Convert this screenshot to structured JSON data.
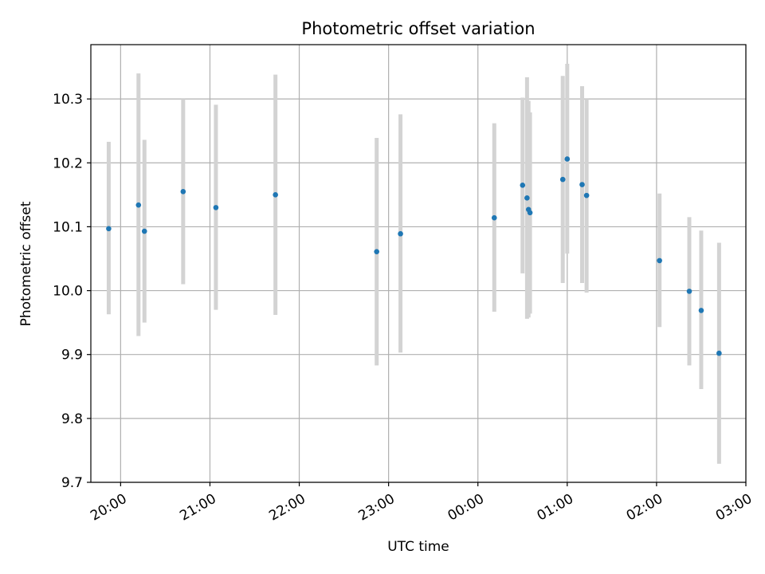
{
  "chart_data": {
    "type": "scatter",
    "title": "Photometric offset variation",
    "xlabel": "UTC time",
    "ylabel": "Photometric offset",
    "grid": true,
    "legend": "none",
    "xlim": [
      "19:40",
      "03:00"
    ],
    "ylim": [
      9.7,
      10.385
    ],
    "x_ticks": [
      "20:00",
      "21:00",
      "22:00",
      "23:00",
      "00:00",
      "01:00",
      "02:00",
      "03:00"
    ],
    "y_ticks": [
      "9.7",
      "9.8",
      "9.9",
      "10.0",
      "10.1",
      "10.2",
      "10.3"
    ],
    "colors": {
      "point": "#1f77b4",
      "errorbar": "#d3d3d3",
      "grid": "#b0b0b0"
    },
    "series": [
      {
        "points": [
          {
            "x": "19:52",
            "y": 10.097,
            "err_low": 9.963,
            "err_high": 10.233
          },
          {
            "x": "20:12",
            "y": 10.134,
            "err_low": 9.929,
            "err_high": 10.34
          },
          {
            "x": "20:16",
            "y": 10.093,
            "err_low": 9.95,
            "err_high": 10.236
          },
          {
            "x": "20:42",
            "y": 10.155,
            "err_low": 10.01,
            "err_high": 10.3
          },
          {
            "x": "21:04",
            "y": 10.13,
            "err_low": 9.97,
            "err_high": 10.291
          },
          {
            "x": "21:44",
            "y": 10.15,
            "err_low": 9.962,
            "err_high": 10.338
          },
          {
            "x": "22:52",
            "y": 10.061,
            "err_low": 9.883,
            "err_high": 10.239
          },
          {
            "x": "23:08",
            "y": 10.089,
            "err_low": 9.903,
            "err_high": 10.276
          },
          {
            "x": "00:11",
            "y": 10.114,
            "err_low": 9.967,
            "err_high": 10.262
          },
          {
            "x": "00:30",
            "y": 10.165,
            "err_low": 10.027,
            "err_high": 10.302
          },
          {
            "x": "00:33",
            "y": 10.145,
            "err_low": 9.956,
            "err_high": 10.334
          },
          {
            "x": "00:34",
            "y": 10.127,
            "err_low": 9.958,
            "err_high": 10.297
          },
          {
            "x": "00:35",
            "y": 10.122,
            "err_low": 9.964,
            "err_high": 10.279
          },
          {
            "x": "00:57",
            "y": 10.174,
            "err_low": 10.012,
            "err_high": 10.336
          },
          {
            "x": "01:00",
            "y": 10.206,
            "err_low": 10.058,
            "err_high": 10.355
          },
          {
            "x": "01:10",
            "y": 10.166,
            "err_low": 10.012,
            "err_high": 10.32
          },
          {
            "x": "01:13",
            "y": 10.149,
            "err_low": 9.997,
            "err_high": 10.3
          },
          {
            "x": "02:02",
            "y": 10.047,
            "err_low": 9.943,
            "err_high": 10.152
          },
          {
            "x": "02:22",
            "y": 9.999,
            "err_low": 9.883,
            "err_high": 10.115
          },
          {
            "x": "02:30",
            "y": 9.969,
            "err_low": 9.846,
            "err_high": 10.094
          },
          {
            "x": "02:42",
            "y": 9.902,
            "err_low": 9.729,
            "err_high": 10.075
          }
        ]
      }
    ]
  }
}
